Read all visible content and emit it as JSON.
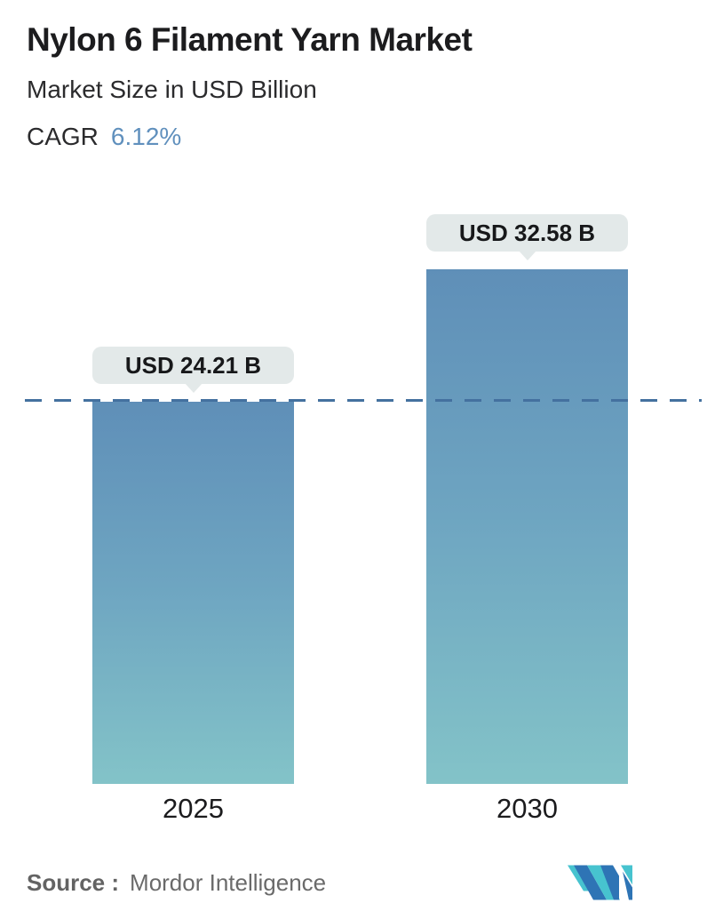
{
  "header": {
    "title": "Nylon 6 Filament Yarn Market",
    "subtitle": "Market Size in USD Billion",
    "cagr_label": "CAGR",
    "cagr_value": "6.12%"
  },
  "chart_data": {
    "type": "bar",
    "title": "Nylon 6 Filament Yarn Market",
    "subtitle": "Market Size in USD Billion",
    "unit": "USD Billion",
    "cagr": "6.12%",
    "categories": [
      "2025",
      "2030"
    ],
    "values": [
      24.21,
      32.58
    ],
    "value_labels": [
      "USD 24.21 B",
      "USD 32.58 B"
    ],
    "baseline": {
      "value": 24.21,
      "style": "dashed-horizontal-line"
    },
    "legend": "none",
    "grid": "off",
    "bar_style": "vertical, gradient blue-to-teal, flat tops, labels in rounded pills with pointer above each bar"
  },
  "footer": {
    "source_label": "Source :",
    "source_value": "Mordor Intelligence",
    "logo_icon": "mordor-intelligence-logo"
  },
  "colors": {
    "cagr_value": "#6090bd",
    "bar_gradient_top": "#5f8fb8",
    "bar_gradient_bottom": "#83c3c8",
    "dashed_line": "#44719f",
    "label_pill_bg": "#e3e9e9",
    "logo_blue": "#2e74b5",
    "logo_teal": "#47c3cf",
    "text_primary": "#1c1c1e",
    "text_source": "#6a6a6a"
  }
}
